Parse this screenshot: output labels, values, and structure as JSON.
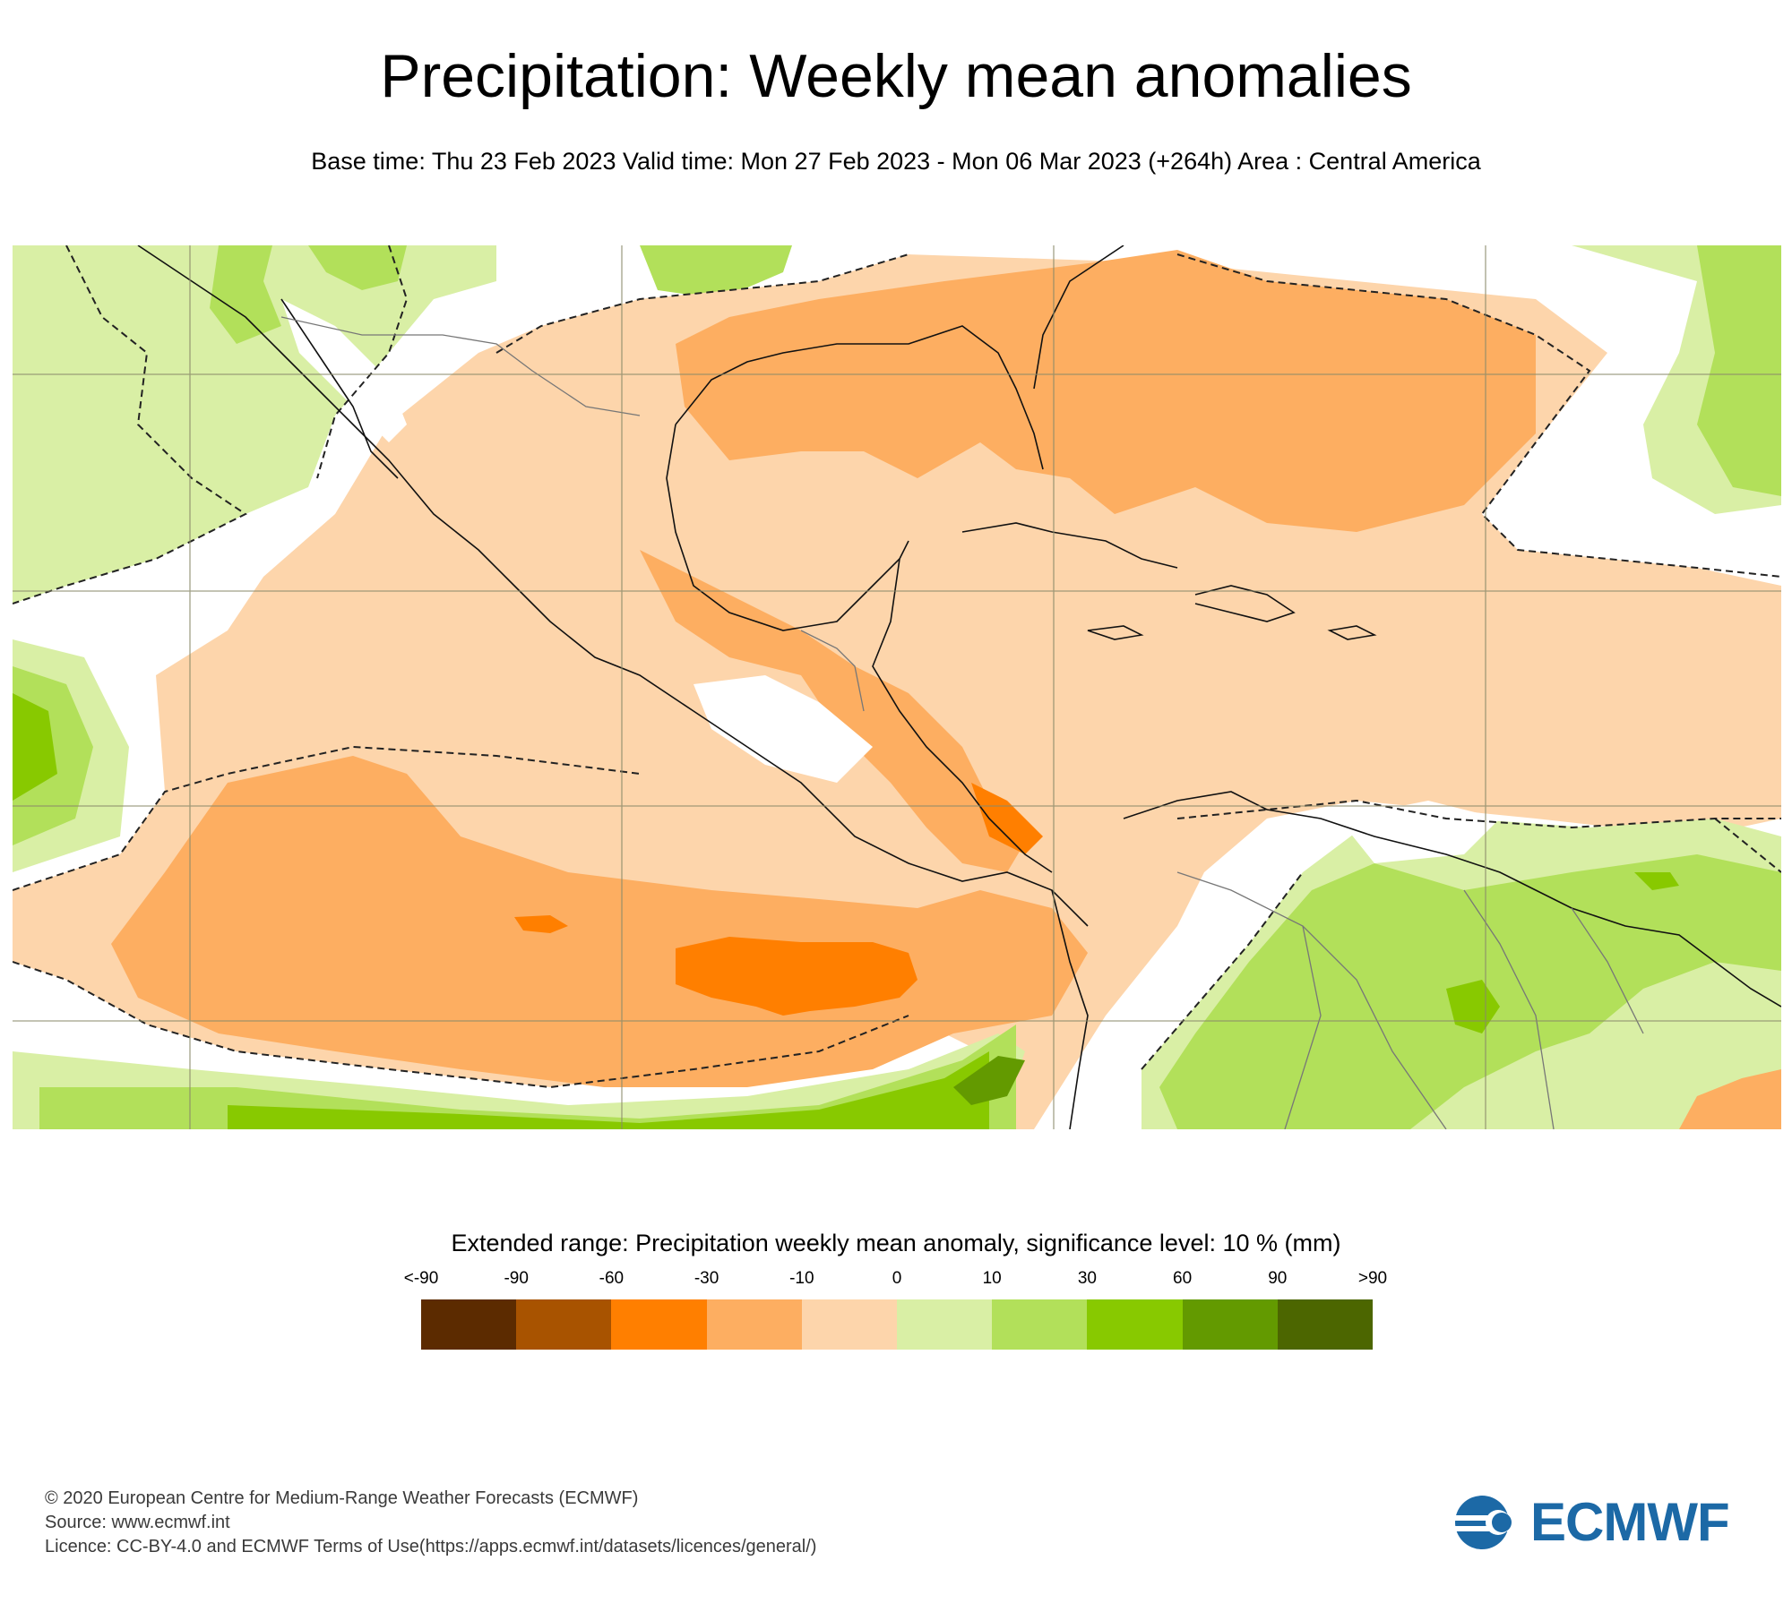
{
  "header": {
    "title": "Precipitation: Weekly mean anomalies",
    "subtitle": "Base time: Thu 23 Feb 2023 Valid time: Mon 27 Feb 2023 - Mon 06 Mar 2023 (+264h) Area : Central America"
  },
  "map": {
    "region": "Central America",
    "layers": [
      "precipitation-anomaly-shading",
      "significance-contour-dashed",
      "coastlines",
      "country-borders",
      "lat-lon-grid"
    ]
  },
  "legend": {
    "title": "Extended range: Precipitation weekly mean anomaly, significance level: 10 % (mm)",
    "tick_labels": [
      "<-90",
      "-90",
      "-60",
      "-30",
      "-10",
      "0",
      "10",
      "30",
      "60",
      "90",
      ">90"
    ],
    "colors": [
      "#5c2b00",
      "#a85300",
      "#ff7f00",
      "#fdae61",
      "#fdd5ab",
      "#d9efa5",
      "#b2e05a",
      "#88c900",
      "#639a00",
      "#4c6600"
    ]
  },
  "footer": {
    "line1": "© 2020 European Centre for Medium-Range Weather Forecasts (ECMWF)",
    "line2": "Source: www.ecmwf.int",
    "line3": "Licence: CC-BY-4.0 and ECMWF Terms of Use(https://apps.ecmwf.int/datasets/licences/general/)"
  },
  "logo": {
    "text": "ECMWF",
    "color": "#1c69a6"
  }
}
